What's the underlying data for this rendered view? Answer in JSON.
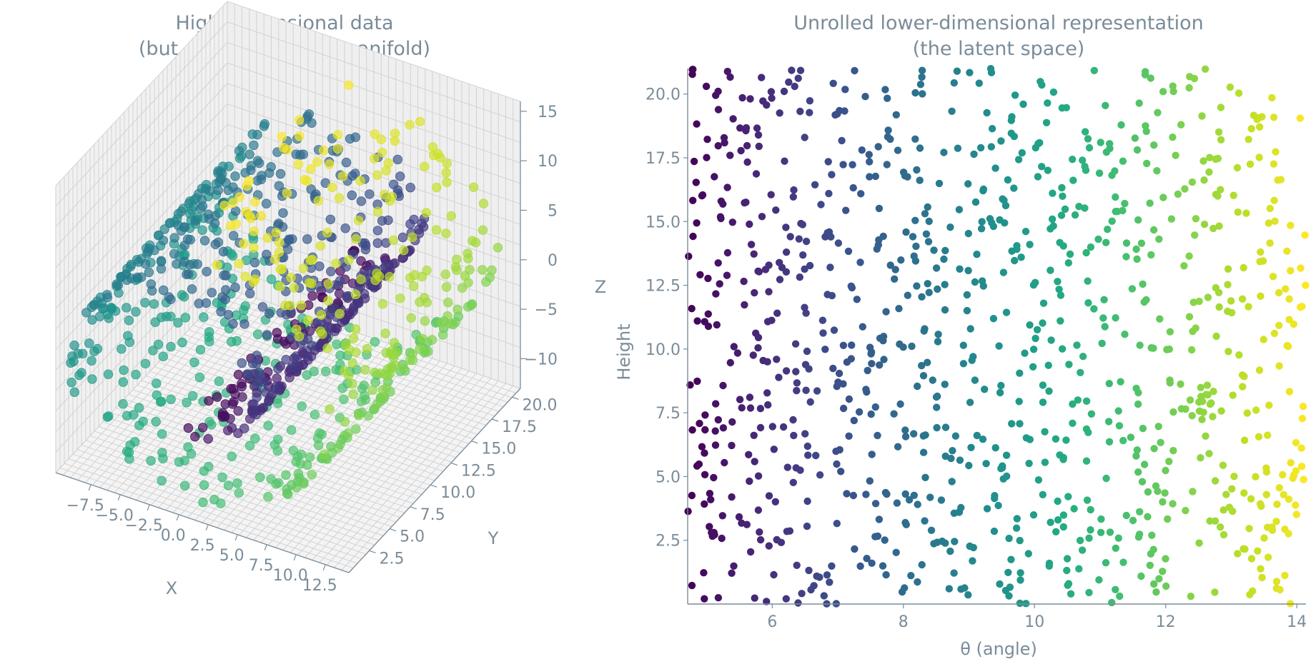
{
  "chart_data": [
    {
      "type": "scatter",
      "projection": "3d",
      "title": "High-dimensional data\n(but structured on a manifold)",
      "xlabel": "X",
      "ylabel": "Y",
      "zlabel": "Z",
      "xlim": [
        -10.5,
        14.5
      ],
      "ylim": [
        0,
        21
      ],
      "zlim": [
        -13,
        16
      ],
      "xticks": [
        "−7.5",
        "−5.0",
        "−2.5",
        "0.0",
        "2.5",
        "5.0",
        "7.5",
        "10.0",
        "12.5"
      ],
      "yticks": [
        "2.5",
        "5.0",
        "7.5",
        "10.0",
        "12.5",
        "15.0",
        "17.5",
        "20.0"
      ],
      "zticks": [
        "−10",
        "−5",
        "0",
        "5",
        "10",
        "15"
      ],
      "xtick_values": [
        -7.5,
        -5.0,
        -2.5,
        0.0,
        2.5,
        5.0,
        7.5,
        10.0,
        12.5
      ],
      "ytick_values": [
        2.5,
        5.0,
        7.5,
        10.0,
        12.5,
        15.0,
        17.5,
        20.0
      ],
      "ztick_values": [
        -10,
        -5,
        0,
        5,
        10,
        15
      ],
      "grid": true,
      "colormap": "viridis",
      "color_by": "theta",
      "data_rule": "x = theta*cos(theta), y = height, z = theta*sin(theta); points from the latent-space chart",
      "seed": 7,
      "n_points": 1000
    },
    {
      "type": "scatter",
      "title": "Unrolled lower-dimensional representation\n(the latent space)",
      "xlabel": "θ (angle)",
      "ylabel": "Height",
      "xlim": [
        4.71,
        14.14
      ],
      "ylim": [
        0,
        21
      ],
      "xticks": [
        "6",
        "8",
        "10",
        "12",
        "14"
      ],
      "yticks": [
        "2.5",
        "5.0",
        "7.5",
        "10.0",
        "12.5",
        "15.0",
        "17.5",
        "20.0"
      ],
      "xtick_values": [
        6,
        8,
        10,
        12,
        14
      ],
      "ytick_values": [
        2.5,
        5.0,
        7.5,
        10.0,
        12.5,
        15.0,
        17.5,
        20.0
      ],
      "grid": false,
      "colormap": "viridis",
      "color_by": "x",
      "distribution": "theta uniform in [4.71, 14.14], height uniform in [0, 21]",
      "seed": 7,
      "n_points": 1000
    }
  ],
  "colors": {
    "text": "#7a8c99",
    "axis": "#7a8c99",
    "grid": "#d2d2d2",
    "pane": "#f1f1f1",
    "viridis": [
      "#440154",
      "#482475",
      "#414487",
      "#355f8d",
      "#2a788e",
      "#21908d",
      "#22a884",
      "#42be71",
      "#7ad151",
      "#bddf26",
      "#fde725"
    ]
  }
}
